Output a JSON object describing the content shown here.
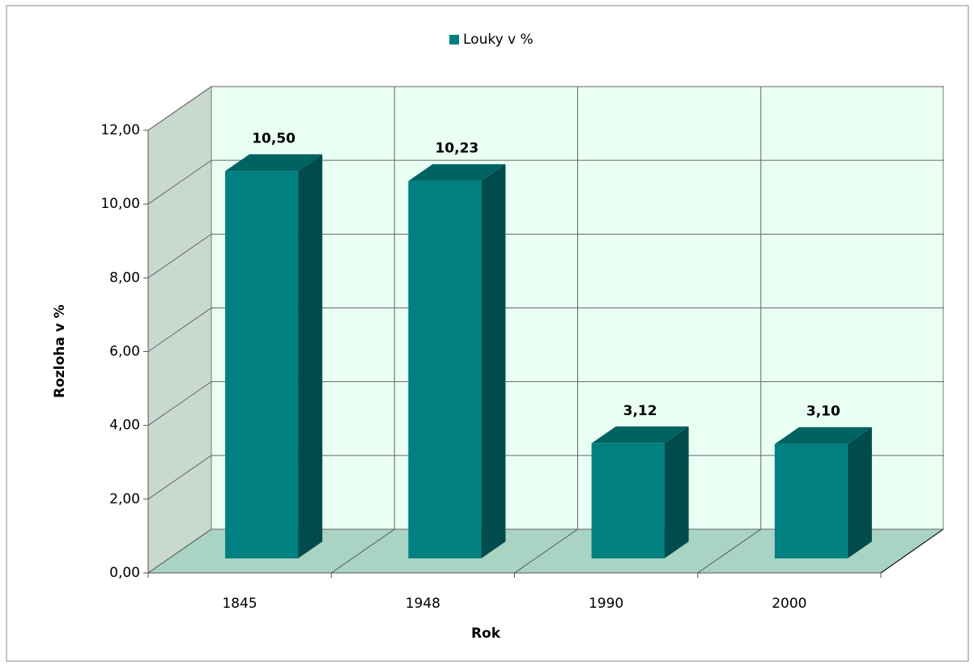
{
  "chart_data": {
    "type": "bar3d",
    "legend": "Louky v %",
    "categories": [
      "1845",
      "1948",
      "1990",
      "2000"
    ],
    "series": [
      {
        "name": "Louky v %",
        "color": "#008080",
        "values": [
          10.5,
          10.23,
          3.12,
          3.1
        ],
        "value_labels": [
          "10,50",
          "10,23",
          "3,12",
          "3,10"
        ]
      }
    ],
    "ylim": [
      0,
      12
    ],
    "yticks": [
      {
        "value": 0,
        "label": "0,00"
      },
      {
        "value": 2,
        "label": "2,00"
      },
      {
        "value": 4,
        "label": "4,00"
      },
      {
        "value": 6,
        "label": "6,00"
      },
      {
        "value": 8,
        "label": "8,00"
      },
      {
        "value": 10,
        "label": "10,00"
      },
      {
        "value": 12,
        "label": "12,00"
      }
    ],
    "y_label": "Rozloha v %",
    "x_label": "Rok",
    "grid": true
  }
}
